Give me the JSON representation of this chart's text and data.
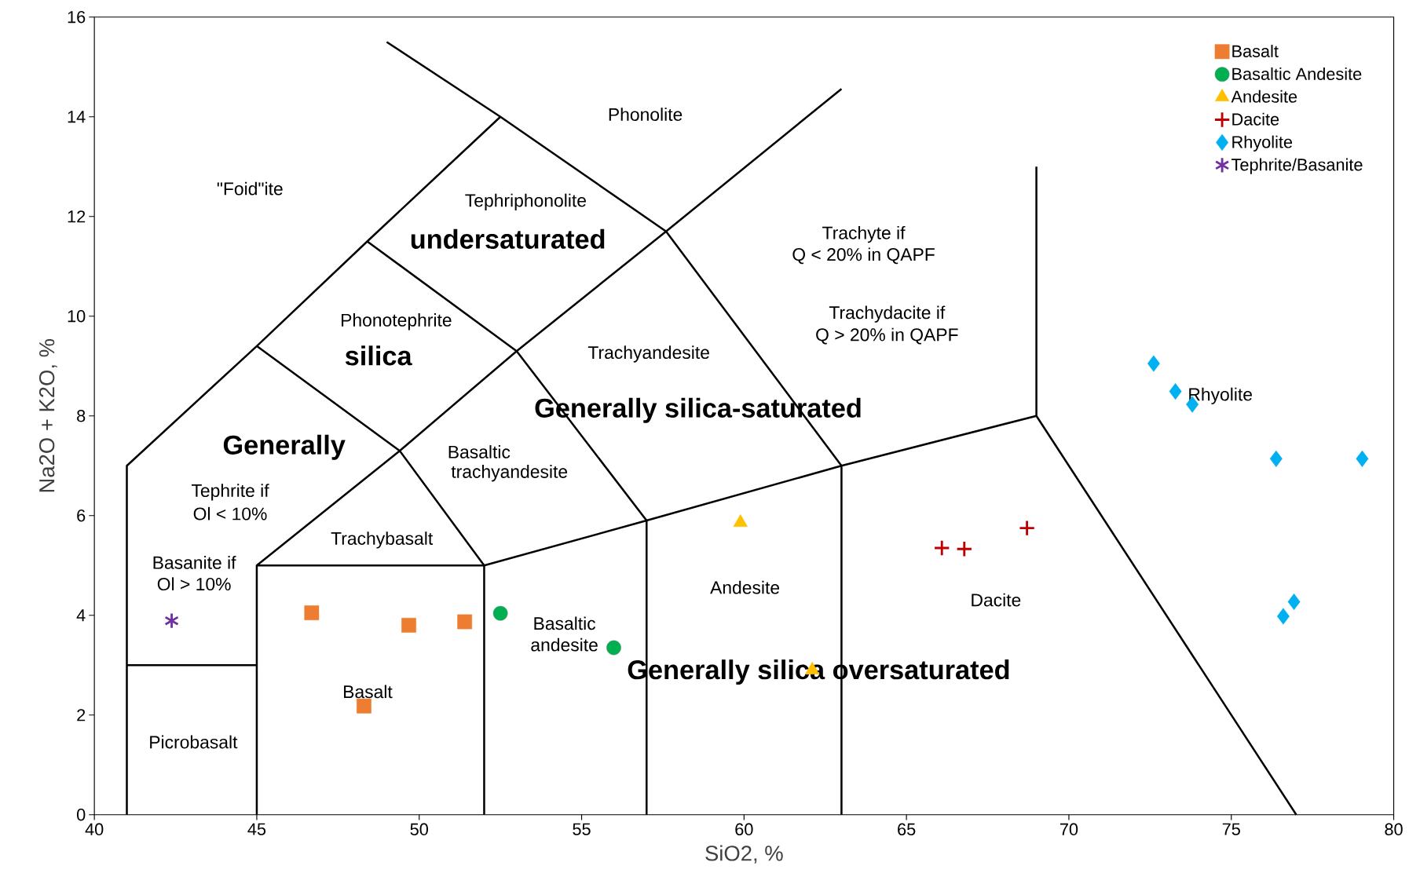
{
  "chart_data": {
    "type": "scatter",
    "xlabel": "SiO2, %",
    "ylabel": "Na2O + K2O, %",
    "xlim": [
      40,
      80
    ],
    "ylim": [
      0,
      16
    ],
    "xticks": [
      40,
      45,
      50,
      55,
      60,
      65,
      70,
      75,
      80
    ],
    "yticks": [
      0,
      2,
      4,
      6,
      8,
      10,
      12,
      14,
      16
    ],
    "grid": false,
    "legend": "top right",
    "series": [
      {
        "name": "Basalt",
        "color": "#ed7d31",
        "marker": "square",
        "x": [
          46.69,
          49.68,
          51.4,
          48.3
        ],
        "values": [
          4.05,
          3.8,
          3.87,
          2.18
        ]
      },
      {
        "name": "Basaltic Andesite",
        "color": "#00b050",
        "marker": "circle",
        "x": [
          52.5,
          55.99
        ],
        "values": [
          4.04,
          3.35
        ]
      },
      {
        "name": "Andesite",
        "color": "#ffc000",
        "marker": "triangle",
        "x": [
          59.89,
          62.1
        ],
        "values": [
          5.86,
          2.9
        ]
      },
      {
        "name": "Dacite",
        "color": "#c00000",
        "marker": "cross",
        "x": [
          66.09,
          66.78,
          68.71
        ],
        "values": [
          5.35,
          5.33,
          5.75
        ]
      },
      {
        "name": "Rhyolite",
        "color": "#00b0f0",
        "marker": "diamond",
        "x": [
          72.61,
          73.28,
          73.8,
          76.38,
          79.03,
          76.93,
          76.6
        ],
        "values": [
          9.05,
          8.49,
          8.23,
          7.14,
          7.14,
          4.27,
          3.98
        ]
      },
      {
        "name": "Tephrite/Basanite",
        "color": "#7030a0",
        "marker": "cross",
        "x": [
          42.38
        ],
        "values": [
          3.89
        ]
      },
      {
        "type": "line",
        "color": "#000000",
        "marker": "none",
        "x": [
          41,
          41,
          45,
          48.4,
          52.5,
          57.6,
          63,
          63,
          null,
          49,
          52.5,
          null,
          57.6,
          63,
          null,
          45,
          49.4,
          52,
          52,
          null,
          45,
          45,
          49.4,
          53,
          57.6,
          null,
          48.4,
          53,
          57,
          57,
          null,
          45,
          52,
          57,
          63,
          69,
          77,
          null,
          69,
          69,
          null,
          41,
          45
        ],
        "values": [
          0,
          7,
          9.4,
          11.5,
          14,
          11.7,
          7,
          0,
          null,
          15.5,
          14,
          null,
          11.7,
          14.56,
          null,
          9.4,
          7.3,
          5,
          0,
          null,
          0,
          5,
          7.3,
          9.3,
          11.7,
          null,
          11.5,
          9.3,
          5.9,
          0,
          null,
          5,
          5,
          5.9,
          7,
          8,
          0,
          null,
          8,
          13,
          null,
          3,
          3
        ]
      }
    ],
    "annotations": [
      "Phonolite",
      "\"Foid\"ite",
      "Tephriphonolite",
      "undersaturated",
      "Phonotephrite",
      "silica",
      "Trachyte if",
      "Q < 20% in QAPF",
      "Trachydacite if",
      "Q > 20% in QAPF",
      "Trachyandesite",
      "Generally silica-saturated",
      "Generally",
      "Basaltic",
      "trachyandesite",
      "Tephrite if",
      "Ol < 10%",
      "Trachybasalt",
      "Basanite if",
      "Ol > 10%",
      "Andesite",
      "Dacite",
      "Basaltic",
      "andesite",
      "Generally silica oversaturated",
      "Basalt",
      "Picrobasalt",
      "Rhyolite"
    ]
  }
}
